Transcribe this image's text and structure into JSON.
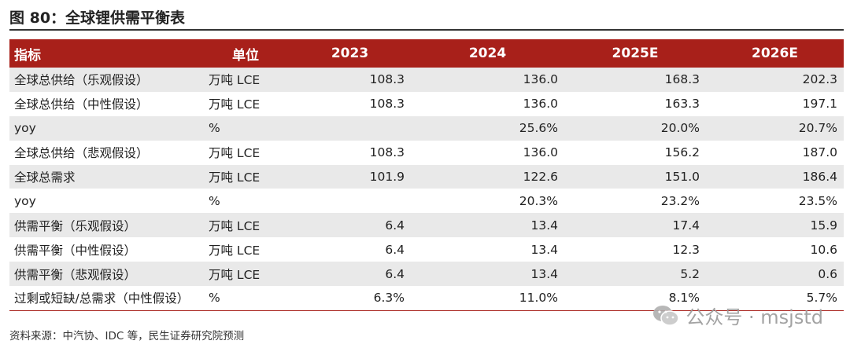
{
  "title": "图 80：全球锂供需平衡表",
  "table": {
    "headers": [
      "指标",
      "单位",
      "2023",
      "2024",
      "2025E",
      "2026E"
    ],
    "rows": [
      [
        "全球总供给（乐观假设）",
        "万吨 LCE",
        "108.3",
        "136.0",
        "168.3",
        "202.3"
      ],
      [
        "全球总供给（中性假设）",
        "万吨 LCE",
        "108.3",
        "136.0",
        "163.3",
        "197.1"
      ],
      [
        "yoy",
        "%",
        "",
        "25.6%",
        "20.0%",
        "20.7%"
      ],
      [
        "全球总供给（悲观假设）",
        "万吨 LCE",
        "108.3",
        "136.0",
        "156.2",
        "187.0"
      ],
      [
        "全球总需求",
        "万吨 LCE",
        "101.9",
        "122.6",
        "151.0",
        "186.4"
      ],
      [
        "yoy",
        "%",
        "",
        "20.3%",
        "23.2%",
        "23.5%"
      ],
      [
        "供需平衡（乐观假设）",
        "万吨 LCE",
        "6.4",
        "13.4",
        "17.4",
        "15.9"
      ],
      [
        "供需平衡（中性假设）",
        "万吨 LCE",
        "6.4",
        "13.4",
        "12.3",
        "10.6"
      ],
      [
        "供需平衡（悲观假设）",
        "万吨 LCE",
        "6.4",
        "13.4",
        "5.2",
        "0.6"
      ],
      [
        "过剩或短缺/总需求（中性假设）",
        "%",
        "6.3%",
        "11.0%",
        "8.1%",
        "5.7%"
      ]
    ]
  },
  "source": "资料来源：中汽协、IDC 等，民生证券研究院预测",
  "watermark": {
    "text": "公众号 · msjstd",
    "icon": "wechat-icon"
  }
}
